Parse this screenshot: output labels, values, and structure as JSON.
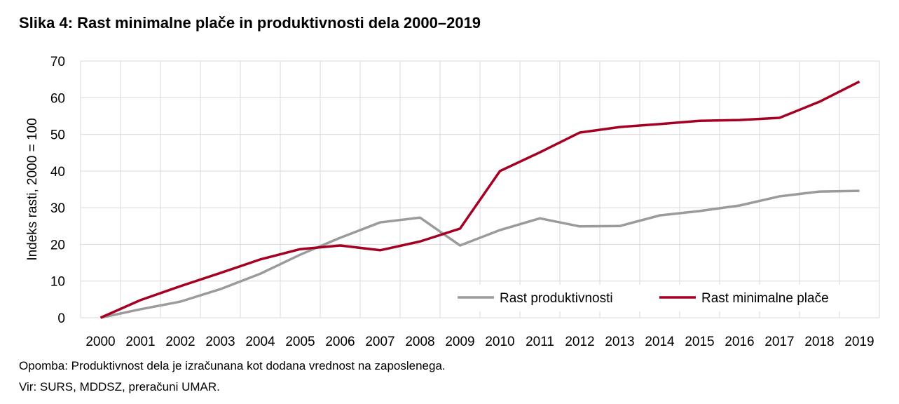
{
  "chart_data": {
    "type": "line",
    "title": "Slika 4: Rast minimalne plače in produktivnosti dela 2000–2019",
    "xlabel": "",
    "ylabel": "Indeks rasti, 2000 = 100",
    "ylim": [
      0,
      70
    ],
    "yticks": [
      0,
      10,
      20,
      30,
      40,
      50,
      60,
      70
    ],
    "grid": true,
    "legend_position": "bottom-right",
    "categories": [
      "2000",
      "2001",
      "2002",
      "2003",
      "2004",
      "2005",
      "2006",
      "2007",
      "2008",
      "2009",
      "2010",
      "2011",
      "2012",
      "2013",
      "2014",
      "2015",
      "2016",
      "2017",
      "2018",
      "2019"
    ],
    "series": [
      {
        "name": "Rast produktivnosti",
        "color": "#9b9b9b",
        "values": [
          0,
          2.3,
          4.4,
          7.8,
          12.0,
          17.2,
          21.8,
          26.0,
          27.3,
          19.7,
          23.9,
          27.1,
          24.9,
          25.0,
          27.9,
          29.1,
          30.6,
          33.1,
          34.4,
          34.6
        ]
      },
      {
        "name": "Rast minimalne plače",
        "color": "#a50021",
        "values": [
          0,
          4.8,
          8.6,
          12.2,
          15.9,
          18.7,
          19.7,
          18.4,
          20.8,
          24.3,
          40.0,
          45.1,
          50.5,
          52.0,
          52.8,
          53.7,
          53.9,
          54.5,
          58.9,
          64.4
        ]
      }
    ]
  },
  "note": "Opomba: Produktivnost dela je izračunana kot dodana vrednost na zaposlenega.",
  "source": "Vir: SURS, MDDSZ, preračuni UMAR."
}
